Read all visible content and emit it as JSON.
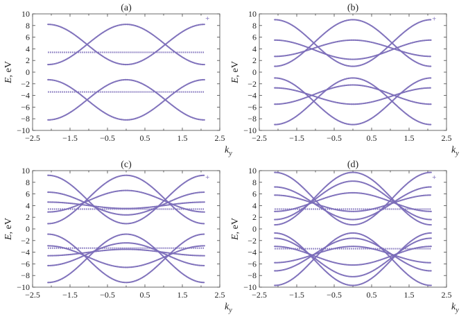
{
  "chart_data": [
    {
      "type": "scatter",
      "panel_label": "(a)",
      "ylabel_symbol": "E",
      "ylabel_unit": ", eV",
      "xlabel_symbol": "k",
      "xlabel_sub": "y",
      "xlim": [
        -2.5,
        2.5
      ],
      "ylim": [
        -10,
        10
      ],
      "xticks": [
        "−2.5",
        "−1.5",
        "−0.5",
        "0.5",
        "1.5",
        "2.5"
      ],
      "yticks": [
        "10",
        "8",
        "6",
        "4",
        "2",
        "0",
        "−2",
        "−4",
        "−6",
        "−8",
        "−10"
      ],
      "kmax": 2.09,
      "bands": [
        {
          "type": "cos",
          "E0": 8.2,
          "E1": 1.3,
          "sign": 1
        },
        {
          "type": "cos",
          "E0": 1.3,
          "E1": 8.2,
          "sign": 1
        },
        {
          "type": "flat",
          "E0": 3.4
        },
        {
          "type": "flat",
          "E0": -3.4
        },
        {
          "type": "cos",
          "E0": -8.2,
          "E1": -1.3,
          "sign": 1
        },
        {
          "type": "cos",
          "E0": -1.3,
          "E1": -8.2,
          "sign": 1
        }
      ]
    },
    {
      "type": "scatter",
      "panel_label": "(b)",
      "ylabel_symbol": "E",
      "ylabel_unit": ", eV",
      "xlabel_symbol": "k",
      "xlabel_sub": "y",
      "xlim": [
        -2.5,
        2.5
      ],
      "ylim": [
        -10,
        10
      ],
      "xticks": [
        "−2.5",
        "−1.5",
        "−0.5",
        "0.5",
        "1.5",
        "2.5"
      ],
      "yticks": [
        "10",
        "8",
        "6",
        "4",
        "2",
        "0",
        "−2",
        "−4",
        "−6",
        "−8",
        "−10"
      ],
      "kmax": 2.09,
      "bands": [
        {
          "type": "cos",
          "E0": 9.0,
          "E1": 1.0
        },
        {
          "type": "cos",
          "E0": 1.0,
          "E1": 9.0
        },
        {
          "type": "cos",
          "E0": 5.5,
          "E1": 2.2
        },
        {
          "type": "cos",
          "E0": 2.7,
          "E1": 5.5
        },
        {
          "type": "cos",
          "E0": -1.0,
          "E1": -9.0
        },
        {
          "type": "cos",
          "E0": -9.0,
          "E1": -1.0
        },
        {
          "type": "cos",
          "E0": -2.7,
          "E1": -5.5
        },
        {
          "type": "cos",
          "E0": -5.5,
          "E1": -2.2
        }
      ]
    },
    {
      "type": "scatter",
      "panel_label": "(c)",
      "ylabel_symbol": "E",
      "ylabel_unit": ", eV",
      "xlabel_symbol": "k",
      "xlabel_sub": "y",
      "xlim": [
        -2.5,
        2.5
      ],
      "ylim": [
        -10,
        10
      ],
      "xticks": [
        "−2.5",
        "−1.5",
        "−0.5",
        "0.5",
        "1.5",
        "2.5"
      ],
      "yticks": [
        "10",
        "8",
        "6",
        "4",
        "2",
        "0",
        "−2",
        "−4",
        "−6",
        "−8",
        "−10"
      ],
      "kmax": 2.09,
      "bands": [
        {
          "type": "cos",
          "E0": 9.2,
          "E1": 0.9
        },
        {
          "type": "cos",
          "E0": 0.9,
          "E1": 9.2
        },
        {
          "type": "cos",
          "E0": 6.3,
          "E1": 2.4
        },
        {
          "type": "cos",
          "E0": 2.9,
          "E1": 6.6
        },
        {
          "type": "cos",
          "E0": 4.6,
          "E1": 3.5
        },
        {
          "type": "flat",
          "E0": 3.4
        },
        {
          "type": "flat",
          "E0": -3.3
        },
        {
          "type": "cos",
          "E0": -4.6,
          "E1": -3.5
        },
        {
          "type": "cos",
          "E0": -2.9,
          "E1": -6.6
        },
        {
          "type": "cos",
          "E0": -6.3,
          "E1": -2.4
        },
        {
          "type": "cos",
          "E0": -0.9,
          "E1": -9.2
        },
        {
          "type": "cos",
          "E0": -9.2,
          "E1": -0.9
        }
      ]
    },
    {
      "type": "scatter",
      "panel_label": "(d)",
      "ylabel_symbol": "E",
      "ylabel_unit": ", eV",
      "xlabel_symbol": "k",
      "xlabel_sub": "y",
      "xlim": [
        -2.5,
        2.5
      ],
      "ylim": [
        -10,
        10
      ],
      "xticks": [
        "−2.5",
        "−1.5",
        "−0.5",
        "0.5",
        "1.5",
        "2.5"
      ],
      "yticks": [
        "10",
        "8",
        "6",
        "4",
        "2",
        "0",
        "−2",
        "−4",
        "−6",
        "−8",
        "−10"
      ],
      "kmax": 2.09,
      "bands": [
        {
          "type": "cos",
          "E0": 9.7,
          "E1": 0.7
        },
        {
          "type": "cos",
          "E0": 0.7,
          "E1": 9.7
        },
        {
          "type": "cos",
          "E0": 7.2,
          "E1": 1.6
        },
        {
          "type": "cos",
          "E0": 1.6,
          "E1": 8.2
        },
        {
          "type": "cos",
          "E0": 5.8,
          "E1": 3.0
        },
        {
          "type": "cos",
          "E0": 3.0,
          "E1": 6.2
        },
        {
          "type": "flat",
          "E0": 3.4
        },
        {
          "type": "flat",
          "E0": -3.4
        },
        {
          "type": "cos",
          "E0": -3.0,
          "E1": -6.2
        },
        {
          "type": "cos",
          "E0": -5.8,
          "E1": -3.0
        },
        {
          "type": "cos",
          "E0": -1.6,
          "E1": -8.2
        },
        {
          "type": "cos",
          "E0": -7.2,
          "E1": -1.6
        },
        {
          "type": "cos",
          "E0": -0.7,
          "E1": -9.7
        },
        {
          "type": "cos",
          "E0": -9.7,
          "E1": -0.7
        }
      ]
    }
  ]
}
